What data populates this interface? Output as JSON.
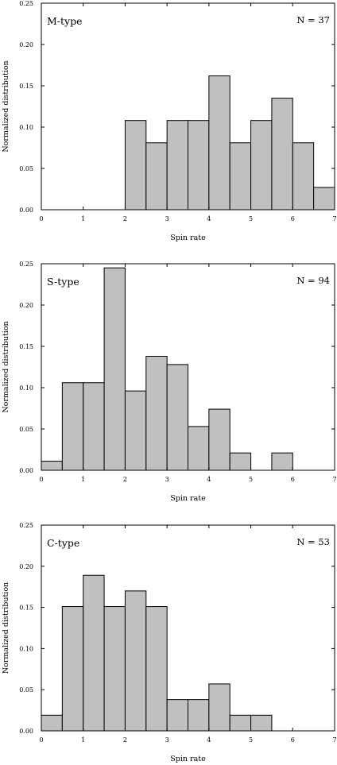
{
  "chart_data": [
    {
      "type": "bar",
      "panel_label": "M-type",
      "n_label": "N = 37",
      "xlabel": "Spin rate",
      "ylabel": "Normalized distribution",
      "xlim": [
        0,
        7
      ],
      "ylim": [
        0,
        0.25
      ],
      "xticks": [
        "0",
        "1",
        "2",
        "3",
        "4",
        "5",
        "6",
        "7"
      ],
      "yticks": [
        "0.00",
        "0.05",
        "0.10",
        "0.15",
        "0.20",
        "0.25"
      ],
      "bin_width": 0.5,
      "bin_starts": [
        0,
        0.5,
        1,
        1.5,
        2,
        2.5,
        3,
        3.5,
        4,
        4.5,
        5,
        5.5,
        6,
        6.5
      ],
      "values": [
        0,
        0,
        0,
        0,
        0.108,
        0.081,
        0.108,
        0.108,
        0.162,
        0.081,
        0.108,
        0.135,
        0.081,
        0.027
      ]
    },
    {
      "type": "bar",
      "panel_label": "S-type",
      "n_label": "N = 94",
      "xlabel": "Spin rate",
      "ylabel": "Normalized distribution",
      "xlim": [
        0,
        7
      ],
      "ylim": [
        0,
        0.25
      ],
      "xticks": [
        "0",
        "1",
        "2",
        "3",
        "4",
        "5",
        "6",
        "7"
      ],
      "yticks": [
        "0.00",
        "0.05",
        "0.10",
        "0.15",
        "0.20",
        "0.25"
      ],
      "bin_width": 0.5,
      "bin_starts": [
        0,
        0.5,
        1,
        1.5,
        2,
        2.5,
        3,
        3.5,
        4,
        4.5,
        5,
        5.5,
        6,
        6.5
      ],
      "values": [
        0.011,
        0.106,
        0.106,
        0.245,
        0.096,
        0.138,
        0.128,
        0.053,
        0.074,
        0.021,
        0,
        0.021,
        0,
        0
      ]
    },
    {
      "type": "bar",
      "panel_label": "C-type",
      "n_label": "N = 53",
      "xlabel": "Spin rate",
      "ylabel": "Normalized distribution",
      "xlim": [
        0,
        7
      ],
      "ylim": [
        0,
        0.25
      ],
      "xticks": [
        "0",
        "1",
        "2",
        "3",
        "4",
        "5",
        "6",
        "7"
      ],
      "yticks": [
        "0.00",
        "0.05",
        "0.10",
        "0.15",
        "0.20",
        "0.25"
      ],
      "bin_width": 0.5,
      "bin_starts": [
        0,
        0.5,
        1,
        1.5,
        2,
        2.5,
        3,
        3.5,
        4,
        4.5,
        5,
        5.5,
        6,
        6.5
      ],
      "values": [
        0.019,
        0.151,
        0.189,
        0.151,
        0.17,
        0.151,
        0.038,
        0.038,
        0.057,
        0.019,
        0.019,
        0,
        0,
        0
      ]
    }
  ]
}
